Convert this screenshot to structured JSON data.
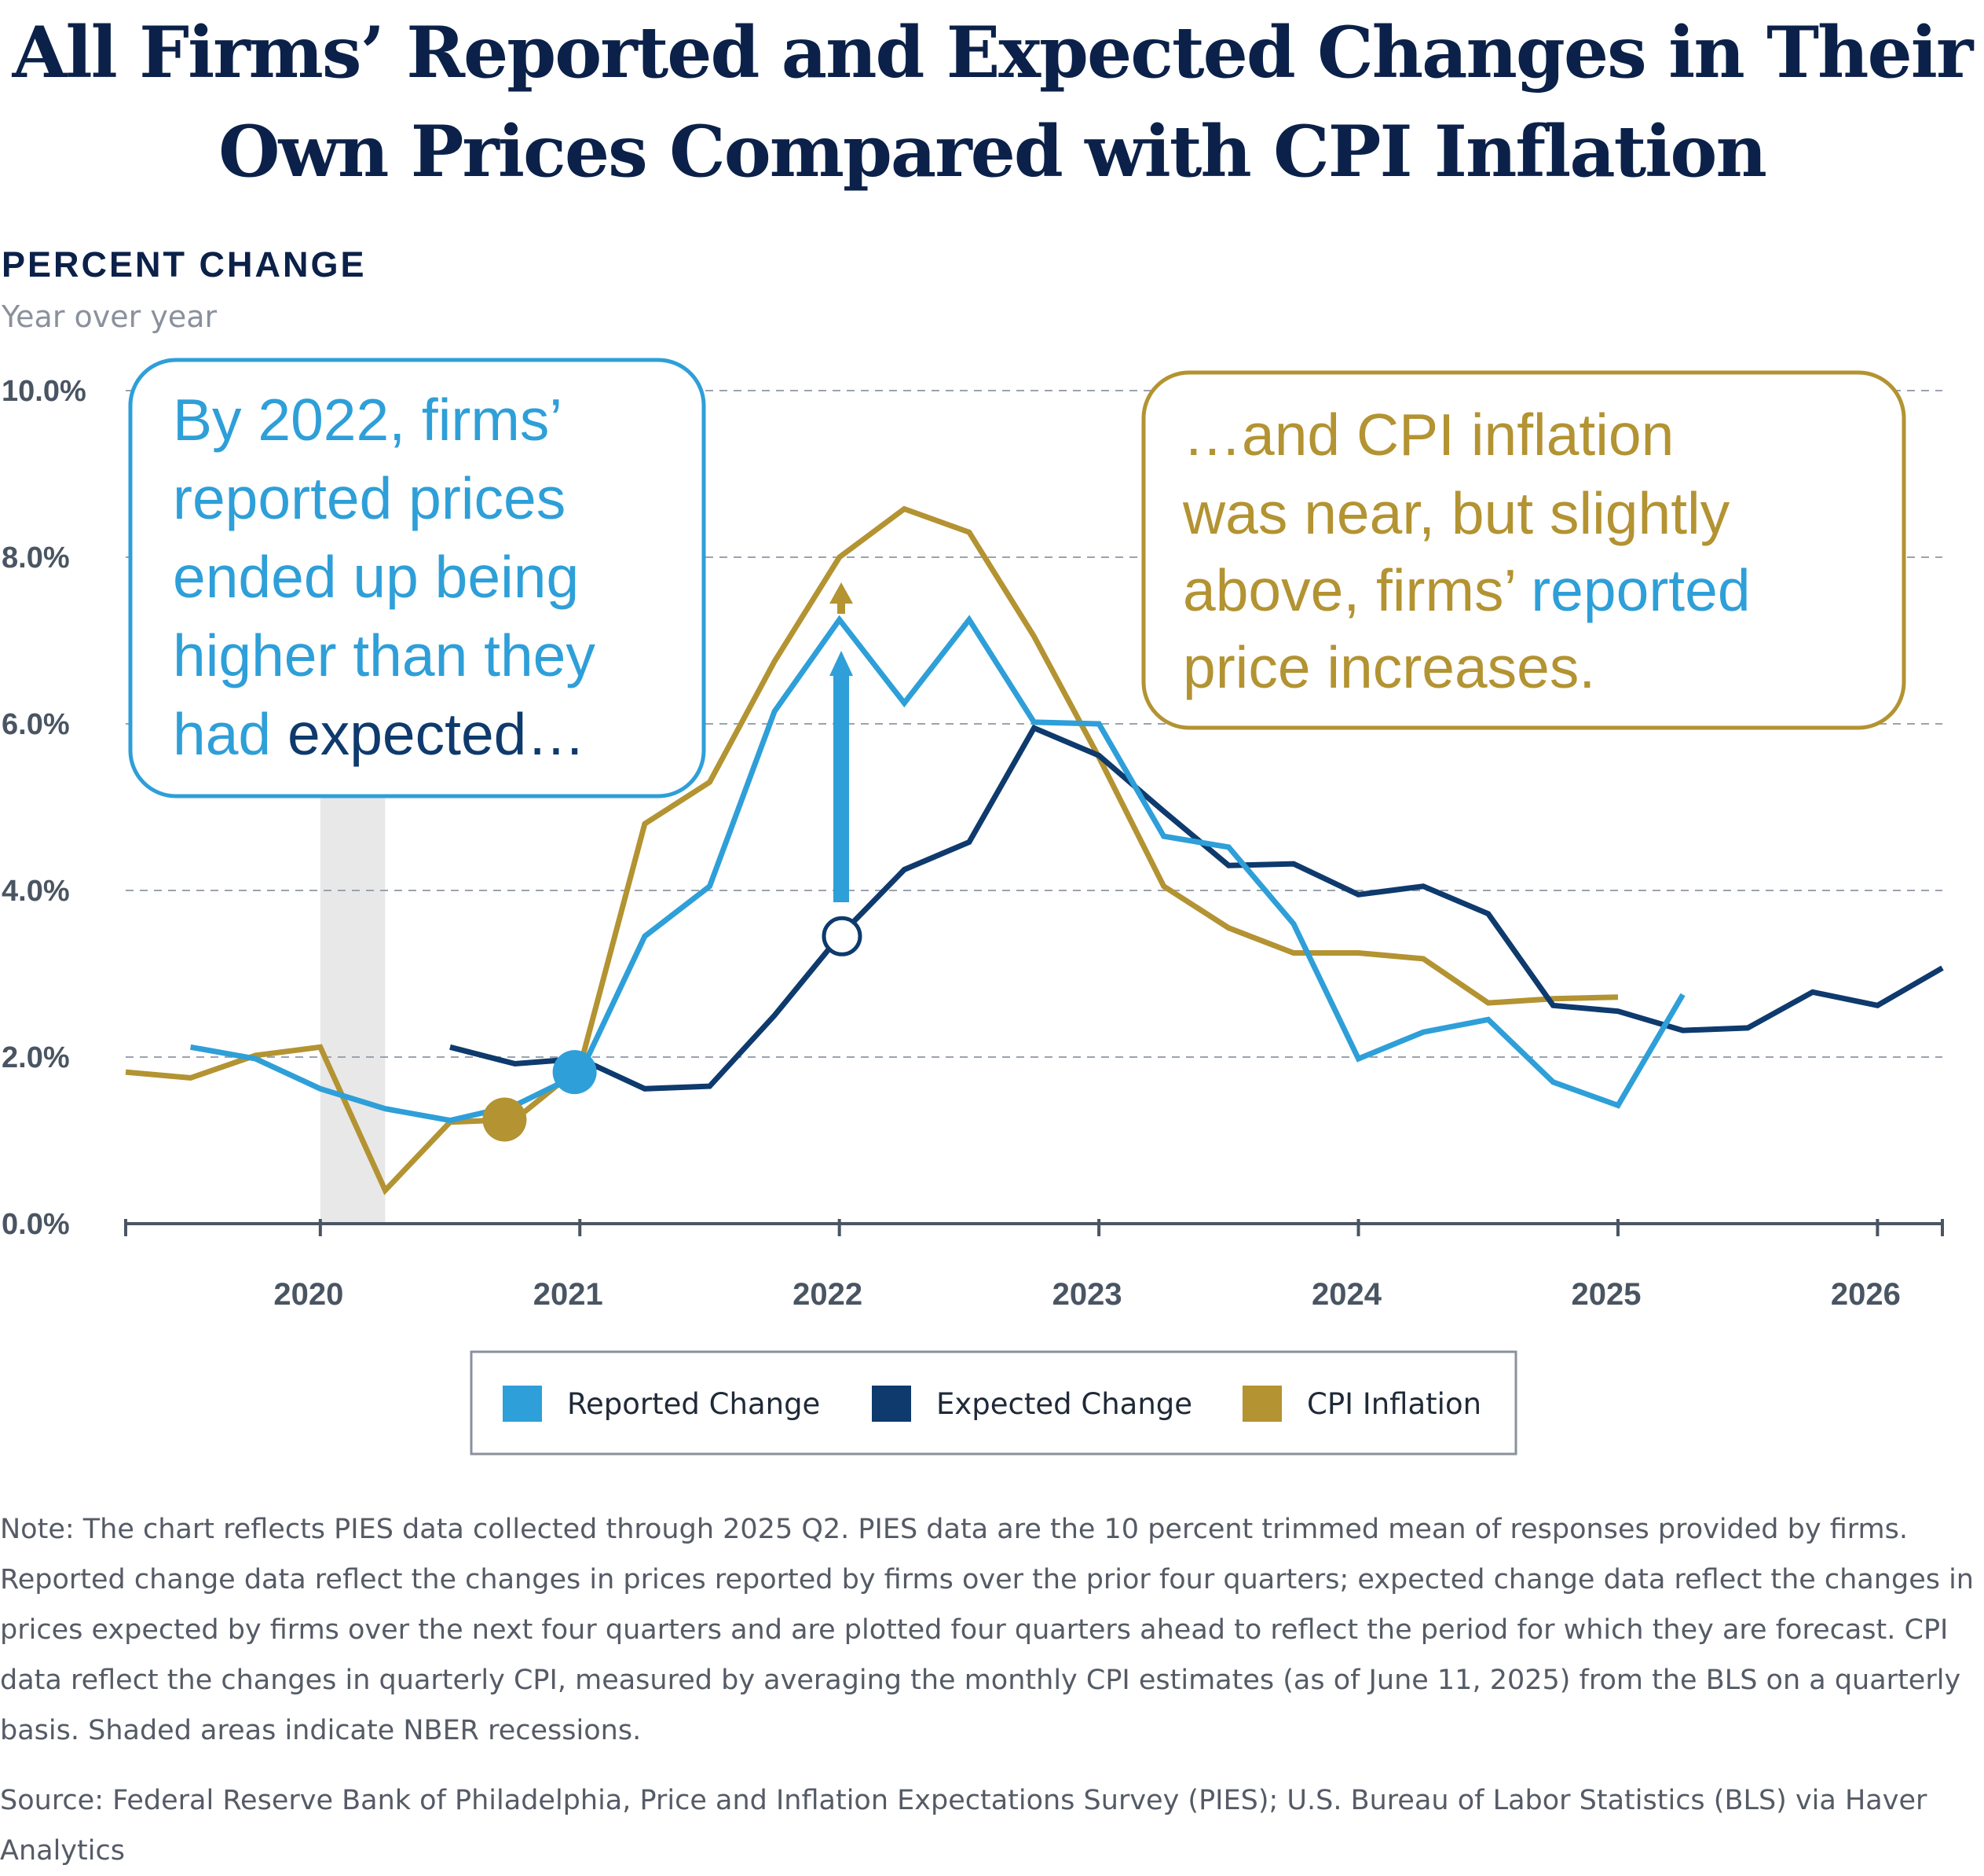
{
  "title_lines": [
    "All Firms’ Reported and Expected Changes in Their",
    "Own Prices Compared with CPI Inflation"
  ],
  "colors": {
    "reported": "#2e9fd8",
    "expected": "#0e3a6d",
    "cpi": "#b39332",
    "title": "#0b2149",
    "recession": "#e8e8e8",
    "grid": "#9aa3af",
    "axis": "#4a5563"
  },
  "chart_data": {
    "type": "line",
    "title": "All Firms’ Reported and Expected Changes in Their Own Prices Compared with CPI Inflation",
    "ylabel": "PERCENT CHANGE",
    "ysublabel": "Year over year",
    "xlabel": "",
    "ylim": [
      0,
      10
    ],
    "xlim": [
      2019.25,
      2026.25
    ],
    "yticks": [
      "0.0%",
      "2.0%",
      "4.0%",
      "6.0%",
      "8.0%",
      "10.0%"
    ],
    "ytick_values": [
      0,
      2,
      4,
      6,
      8,
      10
    ],
    "xticks": [
      "2020",
      "2021",
      "2022",
      "2023",
      "2024",
      "2025",
      "2026"
    ],
    "xtick_values": [
      2020,
      2021,
      2022,
      2023,
      2024,
      2025,
      2026
    ],
    "recessions": [
      [
        2020.0,
        2020.25
      ]
    ],
    "grid": true,
    "legend_position": "bottom",
    "series": [
      {
        "name": "Reported Change",
        "color_key": "reported",
        "x": [
          2019.5,
          2019.75,
          2020.0,
          2020.25,
          2020.5,
          2020.75,
          2021.0,
          2021.25,
          2021.5,
          2021.75,
          2022.0,
          2022.25,
          2022.5,
          2022.75,
          2023.0,
          2023.25,
          2023.5,
          2023.75,
          2024.0,
          2024.25,
          2024.5,
          2024.75,
          2025.0,
          2025.25
        ],
        "y": [
          2.12,
          1.98,
          1.62,
          1.38,
          1.24,
          1.42,
          1.8,
          3.45,
          4.05,
          6.15,
          7.25,
          6.25,
          7.25,
          6.02,
          6.0,
          4.65,
          4.52,
          3.6,
          1.98,
          2.3,
          2.45,
          1.7,
          1.42,
          2.75
        ]
      },
      {
        "name": "Expected Change",
        "color_key": "expected",
        "x": [
          2020.5,
          2020.75,
          2021.0,
          2021.25,
          2021.5,
          2021.75,
          2022.0,
          2022.25,
          2022.5,
          2022.75,
          2023.0,
          2023.25,
          2023.5,
          2023.75,
          2024.0,
          2024.25,
          2024.5,
          2024.75,
          2025.0,
          2025.25,
          2025.5,
          2025.75,
          2026.0,
          2026.25
        ],
        "y": [
          2.12,
          1.92,
          1.98,
          1.62,
          1.65,
          2.5,
          3.45,
          4.25,
          4.58,
          5.95,
          5.62,
          4.95,
          4.3,
          4.32,
          3.95,
          4.05,
          3.72,
          2.62,
          2.55,
          2.32,
          2.35,
          2.78,
          2.62,
          3.07
        ]
      },
      {
        "name": "CPI Inflation",
        "color_key": "cpi",
        "x": [
          2019.25,
          2019.5,
          2019.75,
          2020.0,
          2020.25,
          2020.5,
          2020.75,
          2021.0,
          2021.25,
          2021.5,
          2021.75,
          2022.0,
          2022.25,
          2022.5,
          2022.75,
          2023.0,
          2023.25,
          2023.5,
          2023.75,
          2024.0,
          2024.25,
          2024.5,
          2024.75,
          2025.0
        ],
        "y": [
          1.82,
          1.75,
          2.02,
          2.12,
          0.4,
          1.22,
          1.25,
          1.88,
          4.8,
          5.3,
          6.75,
          8.0,
          8.58,
          8.3,
          7.05,
          5.6,
          4.05,
          3.55,
          3.25,
          3.25,
          3.18,
          2.65,
          2.7,
          2.72
        ]
      }
    ],
    "markers": [
      {
        "name": "cpi-2020q4-point",
        "x": 2020.71,
        "y": 1.25,
        "color_key": "cpi"
      },
      {
        "name": "reported-2021-point",
        "x": 2020.98,
        "y": 1.82,
        "color_key": "reported"
      },
      {
        "name": "expected-2022-point",
        "x": 2022.01,
        "y": 3.45,
        "color_key": "expected"
      }
    ],
    "legend": [
      "Reported Change",
      "Expected Change",
      "CPI Inflation"
    ]
  },
  "annotations": {
    "left": {
      "lines": [
        "By 2022, firms’",
        "reported prices",
        "ended up being",
        "higher than they"
      ],
      "last_prefix": "had ",
      "last_emph": "expected…"
    },
    "right": {
      "line1": "…and CPI inflation",
      "line2": "was near, but slightly",
      "line3_prefix": "above, firms’ ",
      "line3_emph": "reported",
      "line4": "price increases."
    }
  },
  "note": "Note: The chart reflects PIES data collected through 2025 Q2. PIES data are the 10 percent trimmed mean of responses provided by firms. Reported change data reflect the changes in prices reported by firms over the prior four quarters; expected change data reflect the changes in prices expected by firms over the next four quarters and are plotted four quarters ahead to reflect the period for which they are forecast. CPI data reflect the changes in quarterly CPI, measured by averaging the monthly CPI estimates (as of June 11, 2025) from the BLS on a quarterly basis. Shaded areas indicate NBER recessions.",
  "source": "Source: Federal Reserve Bank of Philadelphia, Price and Inflation Expectations Survey (PIES); U.S. Bureau of Labor Statistics (BLS) via Haver Analytics"
}
